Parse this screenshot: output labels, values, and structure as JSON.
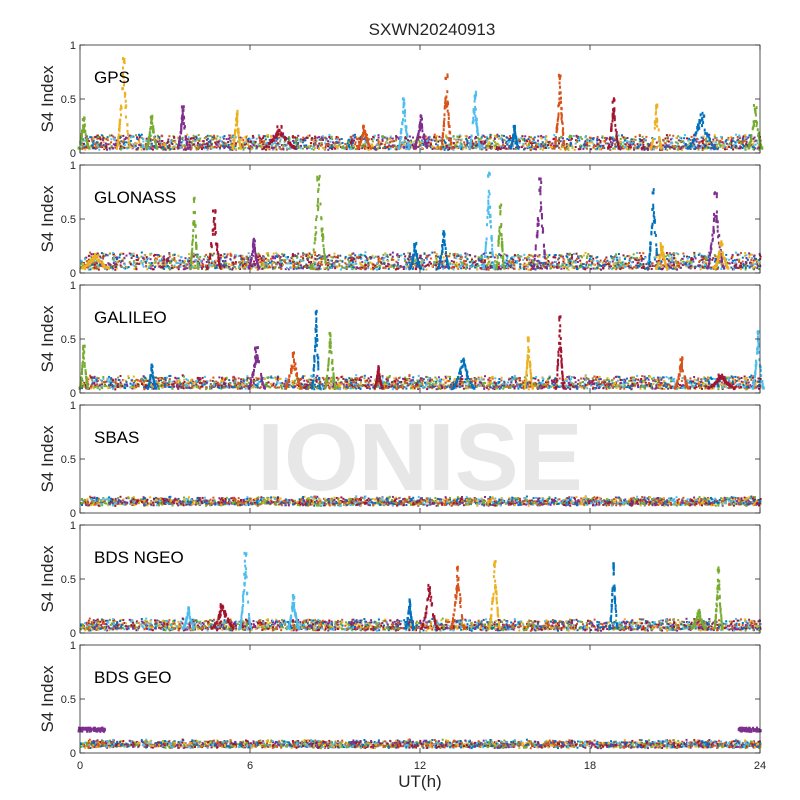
{
  "chart_data": {
    "type": "scatter",
    "title": "SXWN20240913",
    "xlabel": "UT(h)",
    "ylabel": "S4 Index",
    "xlim": [
      0,
      24
    ],
    "ylim": [
      0,
      1
    ],
    "x_ticks": [
      0,
      6,
      12,
      18,
      24
    ],
    "x_tick_labels": [
      "0",
      "6",
      "12",
      "18",
      "24"
    ],
    "y_ticks": [
      0,
      0.5,
      1
    ],
    "y_tick_labels": [
      "0",
      "0.5",
      "1"
    ],
    "grid": false,
    "watermark": "IONISE",
    "colors": [
      "#0072BD",
      "#D95319",
      "#EDB120",
      "#7E2F8E",
      "#77AC30",
      "#4DBEEE",
      "#A2142F"
    ],
    "panels": [
      {
        "label": "GPS",
        "baseline_range": [
          0.02,
          0.16
        ],
        "spikes": [
          {
            "x": 0.1,
            "peak": 0.33,
            "width": 0.4,
            "color": "#77AC30"
          },
          {
            "x": 1.5,
            "peak": 0.88,
            "width": 0.5,
            "color": "#EDB120"
          },
          {
            "x": 2.5,
            "peak": 0.35,
            "width": 0.4,
            "color": "#77AC30"
          },
          {
            "x": 3.6,
            "peak": 0.44,
            "width": 0.4,
            "color": "#7E2F8E"
          },
          {
            "x": 5.5,
            "peak": 0.4,
            "width": 0.3,
            "color": "#EDB120"
          },
          {
            "x": 7.0,
            "peak": 0.25,
            "width": 1.2,
            "color": "#A2142F"
          },
          {
            "x": 10.0,
            "peak": 0.26,
            "width": 0.5,
            "color": "#D95319"
          },
          {
            "x": 11.4,
            "peak": 0.53,
            "width": 0.4,
            "color": "#4DBEEE"
          },
          {
            "x": 12.0,
            "peak": 0.35,
            "width": 0.5,
            "color": "#7E2F8E"
          },
          {
            "x": 12.9,
            "peak": 0.73,
            "width": 0.4,
            "color": "#D95319"
          },
          {
            "x": 13.9,
            "peak": 0.57,
            "width": 0.4,
            "color": "#4DBEEE"
          },
          {
            "x": 15.3,
            "peak": 0.26,
            "width": 0.3,
            "color": "#0072BD"
          },
          {
            "x": 16.9,
            "peak": 0.73,
            "width": 0.4,
            "color": "#D95319"
          },
          {
            "x": 18.8,
            "peak": 0.51,
            "width": 0.4,
            "color": "#A2142F"
          },
          {
            "x": 20.3,
            "peak": 0.45,
            "width": 0.4,
            "color": "#EDB120"
          },
          {
            "x": 21.9,
            "peak": 0.38,
            "width": 1.0,
            "color": "#0072BD"
          },
          {
            "x": 23.8,
            "peak": 0.45,
            "width": 0.5,
            "color": "#77AC30"
          }
        ]
      },
      {
        "label": "GLONASS",
        "baseline_range": [
          0.02,
          0.18
        ],
        "spikes": [
          {
            "x": 0.5,
            "peak": 0.18,
            "width": 1.0,
            "color": "#EDB120"
          },
          {
            "x": 4.0,
            "peak": 0.7,
            "width": 0.3,
            "color": "#77AC30"
          },
          {
            "x": 4.7,
            "peak": 0.6,
            "width": 0.5,
            "color": "#A2142F"
          },
          {
            "x": 6.1,
            "peak": 0.32,
            "width": 0.4,
            "color": "#7E2F8E"
          },
          {
            "x": 8.4,
            "peak": 0.9,
            "width": 0.6,
            "color": "#77AC30"
          },
          {
            "x": 11.8,
            "peak": 0.28,
            "width": 0.4,
            "color": "#0072BD"
          },
          {
            "x": 12.8,
            "peak": 0.4,
            "width": 0.4,
            "color": "#0072BD"
          },
          {
            "x": 14.4,
            "peak": 0.93,
            "width": 0.4,
            "color": "#4DBEEE"
          },
          {
            "x": 14.8,
            "peak": 0.65,
            "width": 0.3,
            "color": "#77AC30"
          },
          {
            "x": 16.2,
            "peak": 0.88,
            "width": 0.5,
            "color": "#7E2F8E"
          },
          {
            "x": 20.2,
            "peak": 0.78,
            "width": 0.4,
            "color": "#0072BD"
          },
          {
            "x": 20.5,
            "peak": 0.28,
            "width": 0.4,
            "color": "#EDB120"
          },
          {
            "x": 22.4,
            "peak": 0.75,
            "width": 0.6,
            "color": "#7E2F8E"
          },
          {
            "x": 22.6,
            "peak": 0.3,
            "width": 0.5,
            "color": "#EDB120"
          }
        ]
      },
      {
        "label": "GALILEO",
        "baseline_range": [
          0.03,
          0.15
        ],
        "spikes": [
          {
            "x": 0.1,
            "peak": 0.45,
            "width": 0.3,
            "color": "#77AC30"
          },
          {
            "x": 2.5,
            "peak": 0.27,
            "width": 0.3,
            "color": "#0072BD"
          },
          {
            "x": 6.2,
            "peak": 0.44,
            "width": 0.6,
            "color": "#7E2F8E"
          },
          {
            "x": 7.5,
            "peak": 0.38,
            "width": 0.6,
            "color": "#D95319"
          },
          {
            "x": 8.3,
            "peak": 0.77,
            "width": 0.3,
            "color": "#0072BD"
          },
          {
            "x": 8.8,
            "peak": 0.56,
            "width": 0.4,
            "color": "#77AC30"
          },
          {
            "x": 10.5,
            "peak": 0.26,
            "width": 0.3,
            "color": "#A2142F"
          },
          {
            "x": 13.5,
            "peak": 0.33,
            "width": 0.8,
            "color": "#0072BD"
          },
          {
            "x": 15.8,
            "peak": 0.52,
            "width": 0.3,
            "color": "#EDB120"
          },
          {
            "x": 16.9,
            "peak": 0.72,
            "width": 0.3,
            "color": "#A2142F"
          },
          {
            "x": 21.2,
            "peak": 0.34,
            "width": 0.5,
            "color": "#D95319"
          },
          {
            "x": 22.6,
            "peak": 0.18,
            "width": 1.0,
            "color": "#A2142F"
          },
          {
            "x": 23.9,
            "peak": 0.58,
            "width": 0.4,
            "color": "#4DBEEE"
          }
        ]
      },
      {
        "label": "SBAS",
        "baseline_range": [
          0.07,
          0.14
        ],
        "spikes": []
      },
      {
        "label": "BDS NGEO",
        "baseline_range": [
          0.02,
          0.12
        ],
        "spikes": [
          {
            "x": 3.8,
            "peak": 0.25,
            "width": 0.4,
            "color": "#4DBEEE"
          },
          {
            "x": 5.0,
            "peak": 0.28,
            "width": 0.8,
            "color": "#A2142F"
          },
          {
            "x": 5.8,
            "peak": 0.75,
            "width": 0.4,
            "color": "#4DBEEE"
          },
          {
            "x": 7.5,
            "peak": 0.36,
            "width": 0.4,
            "color": "#4DBEEE"
          },
          {
            "x": 11.6,
            "peak": 0.32,
            "width": 0.3,
            "color": "#0072BD"
          },
          {
            "x": 12.3,
            "peak": 0.45,
            "width": 0.6,
            "color": "#A2142F"
          },
          {
            "x": 13.3,
            "peak": 0.62,
            "width": 0.5,
            "color": "#D95319"
          },
          {
            "x": 14.6,
            "peak": 0.67,
            "width": 0.4,
            "color": "#EDB120"
          },
          {
            "x": 18.8,
            "peak": 0.65,
            "width": 0.3,
            "color": "#0072BD"
          },
          {
            "x": 21.8,
            "peak": 0.22,
            "width": 0.5,
            "color": "#77AC30"
          },
          {
            "x": 22.5,
            "peak": 0.62,
            "width": 0.3,
            "color": "#77AC30"
          }
        ]
      },
      {
        "label": "BDS GEO",
        "baseline_range": [
          0.05,
          0.11
        ],
        "spikes": [
          {
            "x": 0.4,
            "peak": 0.22,
            "width": 1.0,
            "color": "#7E2F8E",
            "plateau": true
          },
          {
            "x": 23.6,
            "peak": 0.22,
            "width": 0.8,
            "color": "#7E2F8E",
            "plateau": true
          }
        ]
      }
    ]
  }
}
